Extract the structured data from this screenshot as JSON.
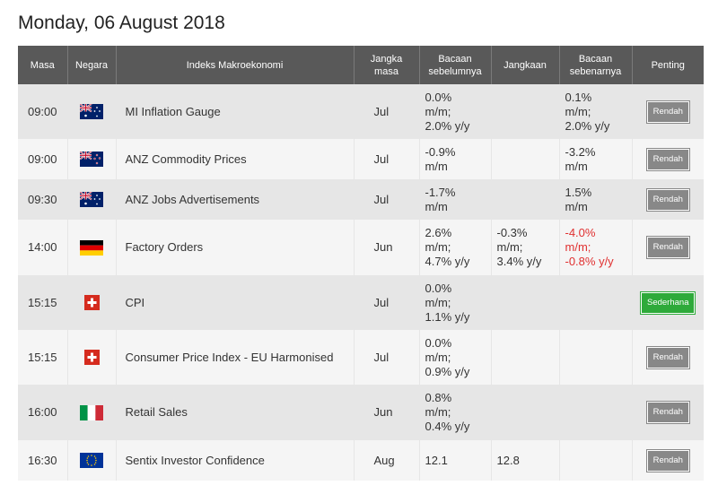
{
  "page_title": "Monday, 06 August 2018",
  "headers": {
    "time": "Masa",
    "country": "Negara",
    "event": "Indeks Makroekonomi",
    "period": "Jangka masa",
    "previous": "Bacaan sebelumnya",
    "forecast": "Jangkaan",
    "actual": "Bacaan sebenarnya",
    "importance": "Penting"
  },
  "rows": [
    {
      "time": "09:00",
      "flag": "australia-flag-icon",
      "event": "MI Inflation Gauge",
      "period": "Jul",
      "previous": [
        "0.0%",
        "m/m;",
        "2.0% y/y"
      ],
      "forecast": [],
      "actual": [
        "0.1%",
        "m/m;",
        "2.0% y/y"
      ],
      "actual_negative": false,
      "importance": "Rendah",
      "importance_level": "low",
      "height": 61
    },
    {
      "time": "09:00",
      "flag": "new-zealand-flag-icon",
      "event": "ANZ Commodity Prices",
      "period": "Jul",
      "previous": [
        "-0.9%",
        "m/m"
      ],
      "forecast": [],
      "actual": [
        "-3.2%",
        "m/m"
      ],
      "actual_negative": false,
      "importance": "Rendah",
      "importance_level": "low",
      "height": 45
    },
    {
      "time": "09:30",
      "flag": "australia-flag-icon",
      "event": "ANZ Jobs Advertisements",
      "period": "Jul",
      "previous": [
        "-1.7%",
        "m/m"
      ],
      "forecast": [],
      "actual": [
        "1.5%",
        "m/m"
      ],
      "actual_negative": false,
      "importance": "Rendah",
      "importance_level": "low",
      "height": 45
    },
    {
      "time": "14:00",
      "flag": "germany-flag-icon",
      "event": "Factory Orders",
      "period": "Jun",
      "previous": [
        "2.6%",
        "m/m;",
        "4.7% y/y"
      ],
      "forecast": [
        "-0.3%",
        "m/m;",
        "3.4% y/y"
      ],
      "actual": [
        "-4.0%",
        "m/m;",
        "-0.8% y/y"
      ],
      "actual_negative": true,
      "importance": "Rendah",
      "importance_level": "low",
      "height": 62
    },
    {
      "time": "15:15",
      "flag": "switzerland-flag-icon",
      "event": "CPI",
      "period": "Jul",
      "previous": [
        "0.0%",
        "m/m;",
        "1.1% y/y"
      ],
      "forecast": [],
      "actual": [],
      "actual_negative": false,
      "importance": "Sederhana",
      "importance_level": "mid",
      "height": 61
    },
    {
      "time": "15:15",
      "flag": "switzerland-flag-icon",
      "event": "Consumer Price Index - EU Harmonised",
      "period": "Jul",
      "previous": [
        "0.0%",
        "m/m;",
        "0.9% y/y"
      ],
      "forecast": [],
      "actual": [],
      "actual_negative": false,
      "importance": "Rendah",
      "importance_level": "low",
      "height": 61
    },
    {
      "time": "16:00",
      "flag": "italy-flag-icon",
      "event": "Retail Sales",
      "period": "Jun",
      "previous": [
        "0.8%",
        "m/m;",
        "0.4% y/y"
      ],
      "forecast": [],
      "actual": [],
      "actual_negative": false,
      "importance": "Rendah",
      "importance_level": "low",
      "height": 62
    },
    {
      "time": "16:30",
      "flag": "eu-flag-icon",
      "event": "Sentix Investor Confidence",
      "period": "Aug",
      "previous": [
        "12.1"
      ],
      "forecast": [
        "12.8"
      ],
      "actual": [],
      "actual_negative": false,
      "importance": "Rendah",
      "importance_level": "low",
      "height": 45
    }
  ]
}
